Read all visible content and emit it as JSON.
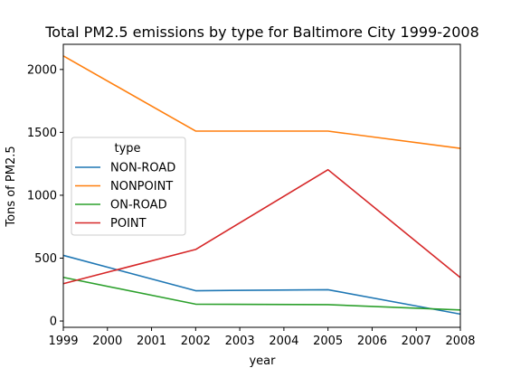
{
  "chart_data": {
    "type": "line",
    "title": "Total PM2.5 emissions by type for Baltimore City 1999-2008",
    "xlabel": "year",
    "ylabel": "Tons of PM2.5",
    "x": [
      1999,
      2002,
      2005,
      2008
    ],
    "xlim": [
      1999,
      2008
    ],
    "ylim": [
      -50,
      2200
    ],
    "xticks": [
      "1999",
      "2000",
      "2001",
      "2002",
      "2003",
      "2004",
      "2005",
      "2006",
      "2007",
      "2008"
    ],
    "yticks": [
      "0",
      "500",
      "1000",
      "1500",
      "2000"
    ],
    "grid": false,
    "legend": {
      "title": "type",
      "placement": "center-left"
    },
    "series": [
      {
        "name": "NON-ROAD",
        "color": "#1f77b4",
        "values": [
          522,
          241,
          249,
          55
        ]
      },
      {
        "name": "NONPOINT",
        "color": "#ff7f0e",
        "values": [
          2108,
          1510,
          1510,
          1373
        ]
      },
      {
        "name": "ON-ROAD",
        "color": "#2ca02c",
        "values": [
          347,
          134,
          130,
          88
        ]
      },
      {
        "name": "POINT",
        "color": "#d62728",
        "values": [
          297,
          569,
          1203,
          345
        ]
      }
    ]
  }
}
